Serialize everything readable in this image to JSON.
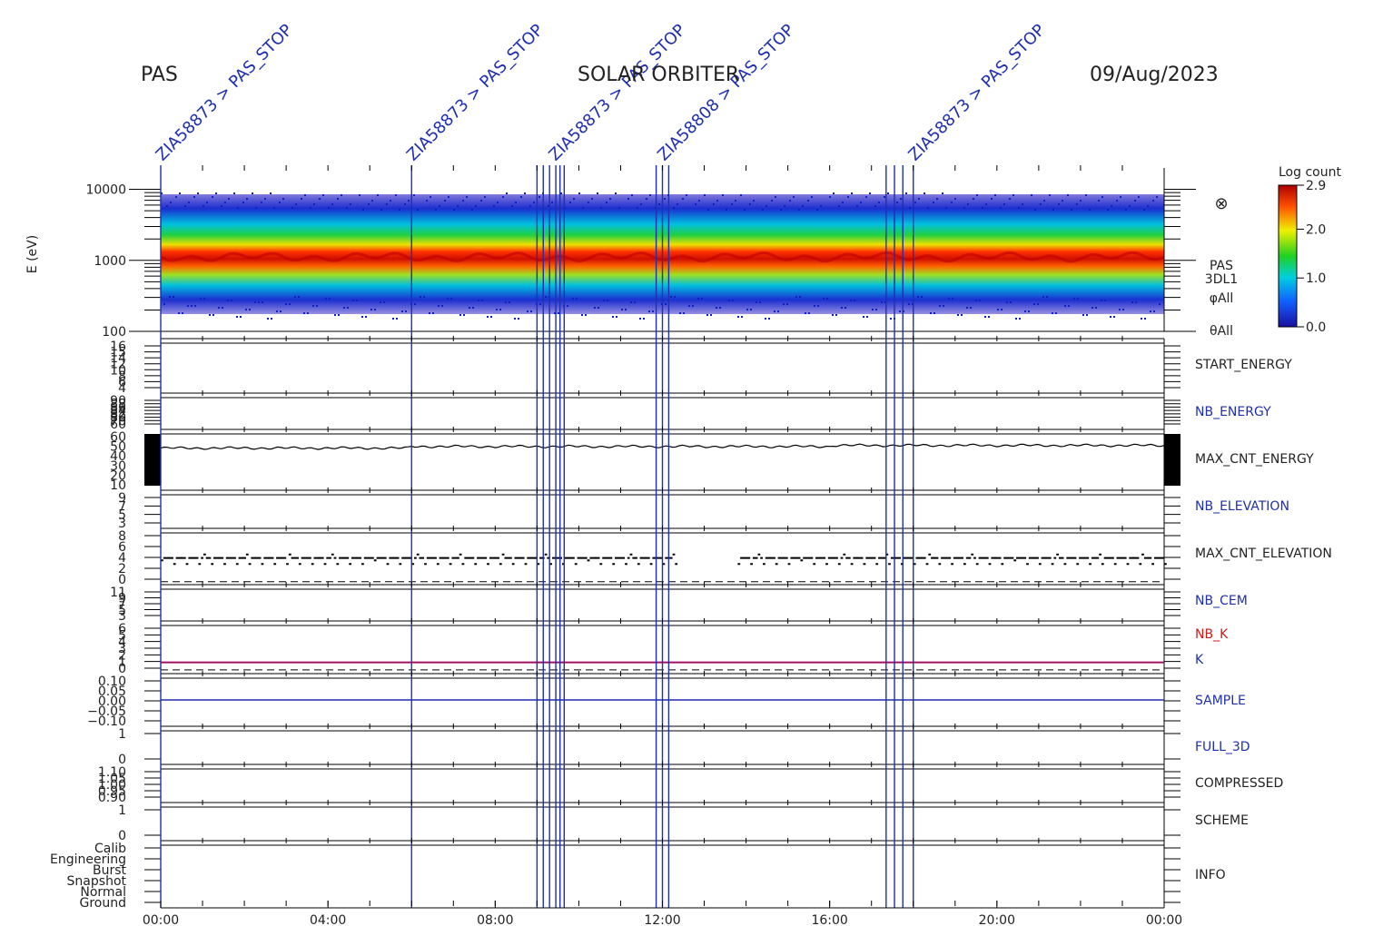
{
  "header": {
    "left": "PAS",
    "center": "SOLAR ORBITER",
    "right": "09/Aug/2023"
  },
  "chart_data": {
    "type": "heatmap",
    "x_axis": {
      "range": [
        "00:00",
        "24:00"
      ],
      "ticks": [
        "00:00",
        "04:00",
        "08:00",
        "12:00",
        "16:00",
        "20:00",
        "00:00"
      ]
    },
    "colorbar": {
      "title": "Log count",
      "ticks": [
        "0.0",
        "1.0",
        "2.0",
        "2.9"
      ],
      "range": [
        0.0,
        2.9
      ]
    },
    "spectrogram": {
      "ylabel": "E (eV)",
      "yscale": "log",
      "ylim": [
        100,
        20000
      ],
      "ticks": [
        "10000",
        "1000",
        "100"
      ],
      "labels": [
        "PAS",
        "3DL1",
        "φAll",
        "θAll"
      ],
      "peak_energy_eV": 1050
    },
    "panels": [
      {
        "name": "START_ENERGY",
        "color": "#222222",
        "ticks": [
          "16",
          "15",
          "14",
          "12",
          "10",
          "8",
          "6",
          "4"
        ]
      },
      {
        "name": "NB_ENERGY",
        "color": "#1f2fb0",
        "ticks": [
          "90",
          "88",
          "86",
          "84",
          "82",
          "80",
          "70",
          "60"
        ]
      },
      {
        "name": "MAX_CNT_ENERGY",
        "color": "#222222",
        "ticks": [
          "60",
          "50",
          "40",
          "30",
          "20",
          "10"
        ],
        "ylim": [
          5,
          62
        ],
        "typical_value": 46
      },
      {
        "name": "NB_ELEVATION",
        "color": "#1f2fb0",
        "ticks": [
          "9",
          "7",
          "5",
          "3"
        ]
      },
      {
        "name": "MAX_CNT_ELEVATION",
        "color": "#222222",
        "ticks": [
          "8",
          "6",
          "4",
          "2",
          "0"
        ],
        "ylim": [
          -0.5,
          9
        ],
        "typical_value": 4
      },
      {
        "name": "NB_CEM",
        "color": "#1f2fb0",
        "ticks": [
          "11",
          "9",
          "7",
          "5",
          "3"
        ]
      },
      {
        "name": "NB_K",
        "color": "#d11a1a",
        "ticks": [
          "6",
          "5",
          "4",
          "3",
          "2",
          "1",
          "0"
        ],
        "ylim": [
          -0.5,
          6.5
        ],
        "value": 1
      },
      {
        "name": "K",
        "color": "#1f2fb0"
      },
      {
        "name": "SAMPLE",
        "color": "#1f2fb0",
        "ticks": [
          "0.10",
          "0.05",
          "0.00",
          "−0.05",
          "−0.10"
        ],
        "ylim": [
          -0.12,
          0.12
        ],
        "value": 0.0
      },
      {
        "name": "FULL_3D",
        "color": "#1f2fb0",
        "ticks": [
          "1",
          "0"
        ]
      },
      {
        "name": "COMPRESSED",
        "color": "#222222",
        "ticks": [
          "1.10",
          "1.05",
          "1.00",
          "0.95",
          "0.90"
        ]
      },
      {
        "name": "SCHEME",
        "color": "#222222",
        "ticks": [
          "1",
          "0"
        ]
      },
      {
        "name": "INFO",
        "color": "#222222",
        "ticks": [
          "Calib",
          "Engineering",
          "Burst",
          "Snapshot",
          "Normal",
          "Ground"
        ]
      }
    ],
    "event_markers_hours": [
      0.0,
      6.0,
      9.0,
      9.15,
      9.3,
      9.45,
      9.55,
      9.65,
      11.85,
      12.0,
      12.15,
      17.35,
      17.55,
      17.75,
      18.0
    ],
    "event_labels": [
      {
        "hour": 0.0,
        "text": "ZIA58873 > PAS_STOP"
      },
      {
        "hour": 6.0,
        "text": "ZIA58873 > PAS_STOP"
      },
      {
        "hour": 9.4,
        "text": "ZIA58873 > PAS_STOP"
      },
      {
        "hour": 12.0,
        "text": "ZIA58808 > PAS_STOP"
      },
      {
        "hour": 18.0,
        "text": "ZIA58873 > PAS_STOP"
      }
    ]
  }
}
